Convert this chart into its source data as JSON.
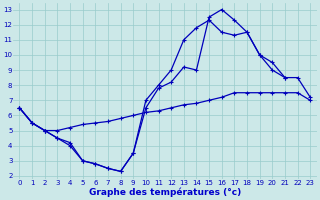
{
  "background_color": "#cce8e8",
  "line_color": "#0000bb",
  "grid_color": "#99cccc",
  "xlabel": "Graphe des températures (°c)",
  "xlabel_color": "#0000cc",
  "xlim": [
    -0.5,
    23.5
  ],
  "ylim": [
    1.8,
    13.4
  ],
  "xticks": [
    0,
    1,
    2,
    3,
    4,
    5,
    6,
    7,
    8,
    9,
    10,
    11,
    12,
    13,
    14,
    15,
    16,
    17,
    18,
    19,
    20,
    21,
    22,
    23
  ],
  "yticks": [
    2,
    3,
    4,
    5,
    6,
    7,
    8,
    9,
    10,
    11,
    12,
    13
  ],
  "line1_x": [
    0,
    1,
    2,
    3,
    4,
    5,
    6,
    7,
    8,
    9,
    10,
    11,
    12,
    13,
    14,
    15,
    16,
    17,
    18,
    19,
    20,
    21
  ],
  "line1_y": [
    6.5,
    5.5,
    5.0,
    4.5,
    4.0,
    3.0,
    2.8,
    2.5,
    2.3,
    3.5,
    6.5,
    7.8,
    8.2,
    9.2,
    9.0,
    12.5,
    13.0,
    12.3,
    11.5,
    10.0,
    9.5,
    8.5
  ],
  "line2_x": [
    0,
    1,
    2,
    3,
    4,
    5,
    6,
    7,
    8,
    9,
    10,
    11,
    12,
    13,
    14,
    15,
    16,
    17,
    18,
    19,
    20,
    21,
    22,
    23
  ],
  "line2_y": [
    6.5,
    5.5,
    5.0,
    5.0,
    5.2,
    5.4,
    5.5,
    5.6,
    5.8,
    6.0,
    6.2,
    6.3,
    6.5,
    6.7,
    6.8,
    7.0,
    7.2,
    7.5,
    7.5,
    7.5,
    7.5,
    7.5,
    7.5,
    7.0
  ],
  "line3_x": [
    0,
    1,
    2,
    3,
    4,
    5,
    6,
    7,
    8,
    9,
    10,
    11,
    12,
    13,
    14,
    15,
    16,
    17,
    18,
    19,
    20,
    21,
    22,
    23
  ],
  "line3_y": [
    6.5,
    5.5,
    5.0,
    4.5,
    4.2,
    3.0,
    2.8,
    2.5,
    2.3,
    3.5,
    7.0,
    8.0,
    9.0,
    11.0,
    11.8,
    12.3,
    11.5,
    11.3,
    11.5,
    10.0,
    9.0,
    8.5,
    8.5,
    7.2
  ]
}
